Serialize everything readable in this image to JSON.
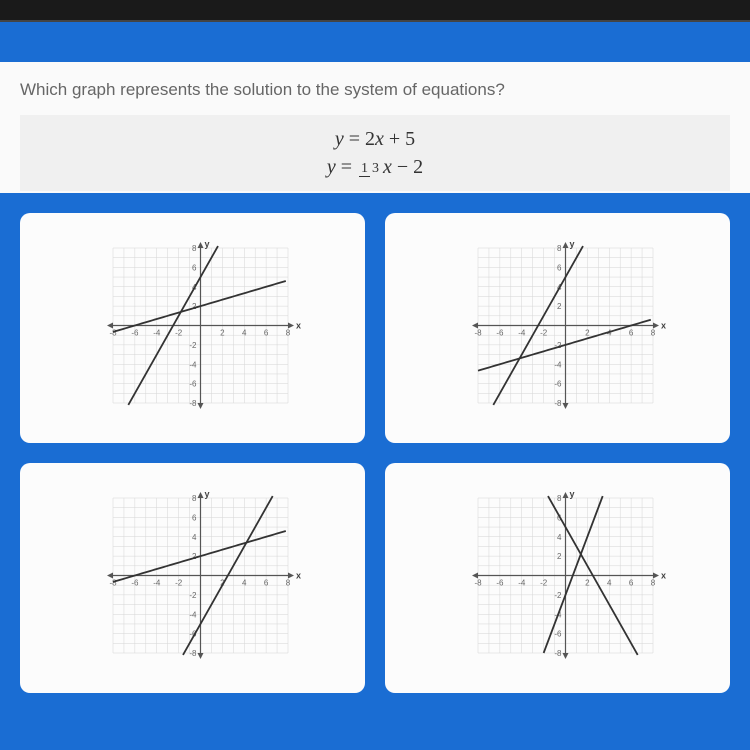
{
  "question": {
    "prompt": "Which graph represents the solution to the system of equations?",
    "equations": [
      "y = 2x + 5",
      "y = \\frac{1}{3}x - 2"
    ]
  },
  "axes": {
    "xmin": -8,
    "xmax": 8,
    "ymin": -8,
    "ymax": 8,
    "step": 2,
    "tick_values": [
      -8,
      -6,
      -4,
      -2,
      2,
      4,
      6,
      8
    ],
    "x_label": "x",
    "y_label": "y"
  },
  "graphs": [
    {
      "id": "option-a",
      "lines": [
        {
          "slope": 2,
          "intercept": 5
        },
        {
          "slope": 0.333,
          "intercept": 2
        }
      ]
    },
    {
      "id": "option-b",
      "lines": [
        {
          "slope": 2,
          "intercept": 5
        },
        {
          "slope": 0.333,
          "intercept": -2
        }
      ]
    },
    {
      "id": "option-c",
      "lines": [
        {
          "slope": 2,
          "intercept": -5
        },
        {
          "slope": 0.333,
          "intercept": 2
        }
      ]
    },
    {
      "id": "option-d",
      "lines": [
        {
          "slope": -2,
          "intercept": 5
        },
        {
          "slope": 3,
          "intercept": -2
        }
      ]
    }
  ],
  "colors": {
    "page_bg": "#1a6dd3",
    "card_bg": "#fcfcfc",
    "question_bg": "#fafafa",
    "equation_bg": "#f0f0f0",
    "grid": "#d5d5d5",
    "axis": "#555555",
    "line": "#333333",
    "topbar": "#1a1a1a"
  }
}
